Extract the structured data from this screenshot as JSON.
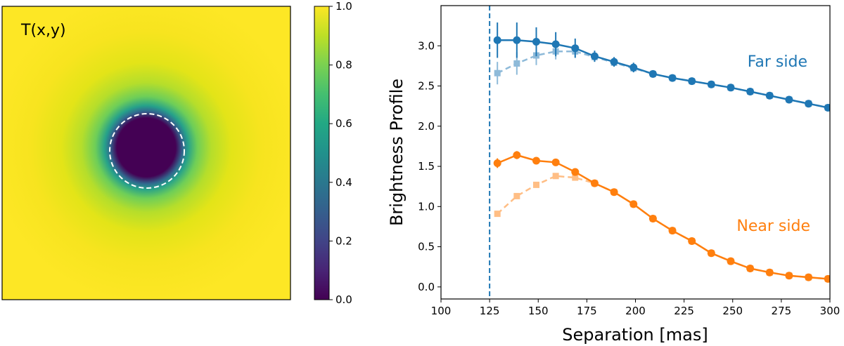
{
  "chart_data": [
    {
      "type": "heatmap",
      "title": "T(x,y)",
      "colormap": "viridis",
      "field": {
        "shape": "radial",
        "center_value": 0.0,
        "outer_value": 1.0,
        "occulted_region": "dark disk at center, edge marked by white dashed circle"
      },
      "colorbar": {
        "ticks": [
          "0.0",
          "0.2",
          "0.4",
          "0.6",
          "0.8",
          "1.0"
        ],
        "range": [
          0.0,
          1.0
        ]
      },
      "grid": false
    },
    {
      "type": "line",
      "title": "",
      "xlabel": "Separation [mas]",
      "ylabel": "Brightness Profile",
      "xlim": [
        100,
        300
      ],
      "ylim": [
        -0.15,
        3.5
      ],
      "xticks": [
        "100",
        "125",
        "150",
        "175",
        "200",
        "225",
        "250",
        "275",
        "300"
      ],
      "yticks": [
        "0.0",
        "0.5",
        "1.0",
        "1.5",
        "2.0",
        "2.5",
        "3.0"
      ],
      "vline": {
        "x": 125,
        "style": "dashed",
        "color": "#1f77b4"
      },
      "grid": false,
      "annotations": [
        {
          "text": "Far side",
          "color": "#1f77b4"
        },
        {
          "text": "Near side",
          "color": "#ff7f0e"
        }
      ],
      "x": [
        129,
        139,
        149,
        159,
        169,
        179,
        189,
        199,
        209,
        219,
        229,
        239,
        249,
        259,
        269,
        279,
        289,
        299
      ],
      "series": [
        {
          "style": "solid",
          "color": "#1f77b4",
          "alpha": 1.0,
          "values": [
            3.07,
            3.07,
            3.05,
            3.02,
            2.97,
            2.87,
            2.8,
            2.73,
            2.65,
            2.6,
            2.56,
            2.52,
            2.48,
            2.43,
            2.38,
            2.33,
            2.28,
            2.23
          ],
          "errors": [
            0.22,
            0.22,
            0.18,
            0.15,
            0.12,
            0.07,
            0.06,
            0.06,
            0.04,
            0.03,
            0.03,
            0.02,
            0.02,
            0.02,
            0.02,
            0.02,
            0.02,
            0.02
          ]
        },
        {
          "style": "dashed",
          "color": "#1f77b4",
          "alpha": 0.5,
          "values": [
            2.66,
            2.78,
            2.88,
            2.93,
            2.93,
            2.86,
            2.79,
            2.72,
            2.65,
            2.6,
            2.56,
            2.52,
            2.48,
            2.43,
            2.38,
            2.33,
            2.28,
            2.23
          ],
          "errors": [
            0.14,
            0.14,
            0.12,
            0.1,
            0.07,
            0.05,
            0.04,
            0.04,
            0.03,
            0.02,
            0.02,
            0.02,
            0.02,
            0.02,
            0.02,
            0.02,
            0.02,
            0.02
          ]
        },
        {
          "style": "solid",
          "color": "#ff7f0e",
          "alpha": 1.0,
          "values": [
            1.54,
            1.64,
            1.57,
            1.55,
            1.43,
            1.29,
            1.18,
            1.03,
            0.85,
            0.7,
            0.57,
            0.42,
            0.32,
            0.23,
            0.18,
            0.14,
            0.12,
            0.1
          ],
          "errors": [
            0.06,
            0.05,
            0.03,
            0.03,
            0.03,
            0.02,
            0.02,
            0.02,
            0.02,
            0.02,
            0.02,
            0.02,
            0.02,
            0.02,
            0.02,
            0.02,
            0.02,
            0.02
          ]
        },
        {
          "style": "dashed",
          "color": "#ff7f0e",
          "alpha": 0.5,
          "values": [
            0.91,
            1.13,
            1.27,
            1.38,
            1.36,
            1.29,
            1.18,
            1.03,
            0.85,
            0.7,
            0.57,
            0.42,
            0.32,
            0.23,
            0.18,
            0.14,
            0.12,
            0.1
          ],
          "errors": [
            0.03,
            0.03,
            0.03,
            0.03,
            0.03,
            0.02,
            0.02,
            0.02,
            0.02,
            0.02,
            0.02,
            0.02,
            0.02,
            0.02,
            0.02,
            0.02,
            0.02,
            0.02
          ]
        }
      ]
    }
  ]
}
